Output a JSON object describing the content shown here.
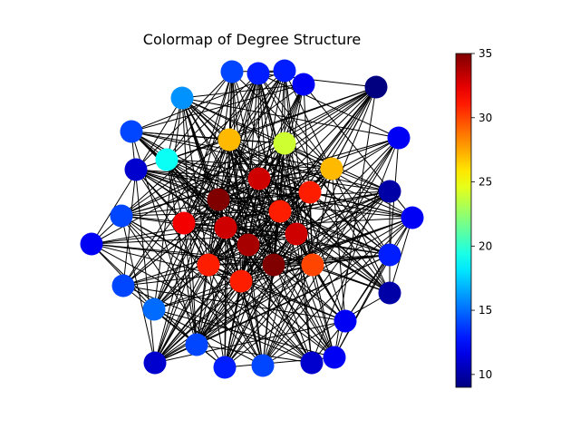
{
  "chart_data": {
    "type": "network",
    "title": "Colormap of Degree Structure",
    "colormap": "jet",
    "colorbar": {
      "range": [
        9,
        35
      ],
      "ticks": [
        10,
        15,
        20,
        25,
        30,
        35
      ],
      "tick_labels": [
        "10",
        "15",
        "20",
        "25",
        "30",
        "35"
      ]
    },
    "node_count": 37,
    "node_degrees": [
      13,
      13,
      12,
      14,
      11,
      13,
      16,
      13,
      14,
      12,
      9,
      10,
      10,
      13,
      27,
      24,
      27,
      19,
      11,
      34,
      33,
      32,
      33,
      31,
      31,
      34,
      35,
      33,
      31,
      30,
      30,
      15,
      13,
      13,
      13,
      14,
      15
    ],
    "edge_color": "#000000"
  }
}
